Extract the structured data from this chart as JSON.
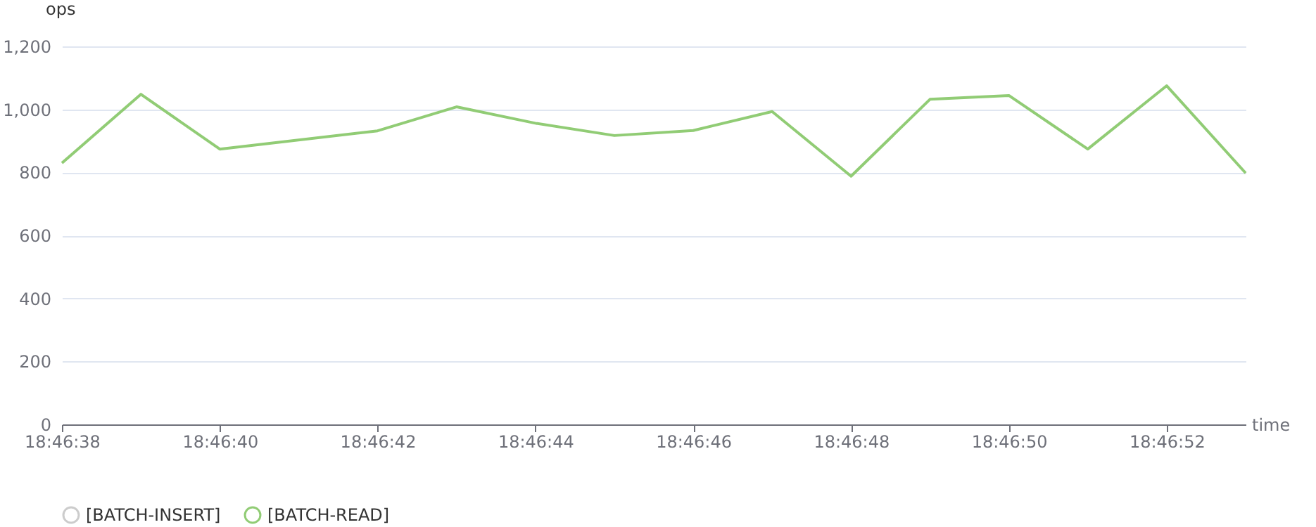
{
  "chart_data": {
    "type": "line",
    "xlabel": "time",
    "ylabel": "ops",
    "x": [
      18.7772222,
      18.7775,
      18.7777778,
      18.7783333,
      18.7786111,
      18.7788889,
      18.7791667,
      18.7794444,
      18.7797222,
      18.78,
      18.7802778,
      18.7805556,
      18.7808333,
      18.7811111,
      18.7813889
    ],
    "series": [
      {
        "name": "[BATCH-INSERT]",
        "color": "#cccccc",
        "values": [
          null,
          null,
          null,
          null,
          null,
          null,
          null,
          null,
          null,
          null,
          null,
          null,
          null,
          null,
          null
        ]
      },
      {
        "name": "[BATCH-READ]",
        "color": "#91cc75",
        "values": [
          830,
          1048,
          874,
          932,
          1008,
          956,
          917,
          933,
          993,
          788,
          1032,
          1044,
          874,
          1075,
          798
        ]
      }
    ],
    "xlim": [
      18.7772222,
      18.7813889
    ],
    "xticks": [
      {
        "value": 18.7772222,
        "label": "18:46:38"
      },
      {
        "value": 18.7777778,
        "label": "18:46:40"
      },
      {
        "value": 18.7783333,
        "label": "18:46:42"
      },
      {
        "value": 18.7788889,
        "label": "18:46:44"
      },
      {
        "value": 18.7794444,
        "label": "18:46:46"
      },
      {
        "value": 18.78,
        "label": "18:46:48"
      },
      {
        "value": 18.7805556,
        "label": "18:46:50"
      },
      {
        "value": 18.7811111,
        "label": "18:46:52"
      }
    ],
    "ylim": [
      0,
      1200
    ],
    "yticks": [
      0,
      200,
      400,
      600,
      800,
      {
        "value": 1000,
        "label": "1,000"
      },
      {
        "value": 1200,
        "label": "1,200"
      }
    ],
    "grid": "y",
    "legend": "bottom",
    "marker": "none",
    "line_style": "solid"
  }
}
